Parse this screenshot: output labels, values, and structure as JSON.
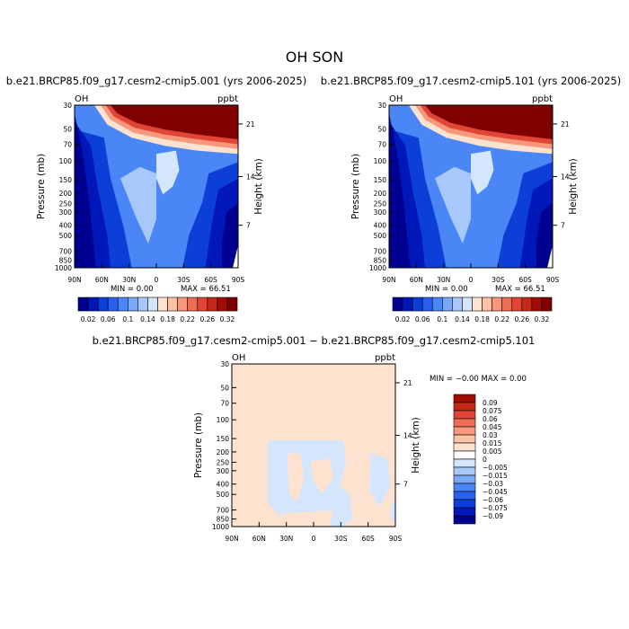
{
  "page_title": "OH SON",
  "chart_data": [
    {
      "type": "heatmap",
      "title": "b.e21.BRCP85.f09_g17.cesm2-cmip5.001 (yrs 2006-2025)",
      "corner_left": "OH",
      "corner_right": "ppbt",
      "ylabel": "Pressure (mb)",
      "ylabel_right": "Height (km)",
      "x_ticks": [
        "90N",
        "60N",
        "30N",
        "0",
        "30S",
        "60S",
        "90S"
      ],
      "y_ticks": [
        "30",
        "50",
        "70",
        "100",
        "150",
        "200",
        "250",
        "300",
        "400",
        "500",
        "700",
        "850",
        "1000"
      ],
      "y_ticks_right": [
        "21",
        "14",
        "7"
      ],
      "min_label": "MIN =    0.00",
      "max_label": "MAX =   66.51",
      "colorbar_labels": [
        "0.02",
        "0.06",
        "0.1",
        "0.14",
        "0.18",
        "0.22",
        "0.26",
        "0.32"
      ],
      "colorbar_colors": [
        "#000090",
        "#0018b8",
        "#0b3fd8",
        "#2a5ff0",
        "#4a86f5",
        "#7aa8f8",
        "#a8c8fb",
        "#d4e6fc",
        "#fde3cf",
        "#fbc2a5",
        "#f7977c",
        "#f06d55",
        "#e04535",
        "#c62818",
        "#a00d05",
        "#800000"
      ]
    },
    {
      "type": "heatmap",
      "title": "b.e21.BRCP85.f09_g17.cesm2-cmip5.101 (yrs 2006-2025)",
      "corner_left": "OH",
      "corner_right": "ppbt",
      "ylabel": "Pressure (mb)",
      "ylabel_right": "Height (km)",
      "x_ticks": [
        "90N",
        "60N",
        "30N",
        "0",
        "30S",
        "60S",
        "90S"
      ],
      "y_ticks": [
        "30",
        "50",
        "70",
        "100",
        "150",
        "200",
        "250",
        "300",
        "400",
        "500",
        "700",
        "850",
        "1000"
      ],
      "y_ticks_right": [
        "21",
        "14",
        "7"
      ],
      "min_label": "MIN =    0.00",
      "max_label": "MAX =   66.51",
      "colorbar_labels": [
        "0.02",
        "0.06",
        "0.1",
        "0.14",
        "0.18",
        "0.22",
        "0.26",
        "0.32"
      ],
      "colorbar_colors": [
        "#000090",
        "#0018b8",
        "#0b3fd8",
        "#2a5ff0",
        "#4a86f5",
        "#7aa8f8",
        "#a8c8fb",
        "#d4e6fc",
        "#fde3cf",
        "#fbc2a5",
        "#f7977c",
        "#f06d55",
        "#e04535",
        "#c62818",
        "#a00d05",
        "#800000"
      ]
    },
    {
      "type": "heatmap",
      "title": "b.e21.BRCP85.f09_g17.cesm2-cmip5.001 − b.e21.BRCP85.f09_g17.cesm2-cmip5.101",
      "corner_left": "OH",
      "corner_right": "ppbt",
      "ylabel": "Pressure (mb)",
      "ylabel_right": "Height (km)",
      "x_ticks": [
        "90N",
        "60N",
        "30N",
        "0",
        "30S",
        "60S",
        "90S"
      ],
      "y_ticks": [
        "30",
        "50",
        "70",
        "100",
        "150",
        "200",
        "250",
        "300",
        "400",
        "500",
        "700",
        "850",
        "1000"
      ],
      "y_ticks_right": [
        "21",
        "14",
        "7"
      ],
      "minmax_label": "MIN =  −0.00   MAX =   0.00",
      "colorbar_labels": [
        "0.09",
        "0.075",
        "0.06",
        "0.045",
        "0.03",
        "0.015",
        "0.005",
        "0",
        "−0.005",
        "−0.015",
        "−0.03",
        "−0.045",
        "−0.06",
        "−0.075",
        "−0.09"
      ],
      "colorbar_colors": [
        "#a00d05",
        "#c62818",
        "#e04535",
        "#f06d55",
        "#f7977c",
        "#fbc2a5",
        "#fde3cf",
        "#ffffff",
        "#d4e6fc",
        "#a8c8fb",
        "#7aa8f8",
        "#4a86f5",
        "#2a5ff0",
        "#0b3fd8",
        "#0018b8",
        "#000090"
      ]
    }
  ]
}
